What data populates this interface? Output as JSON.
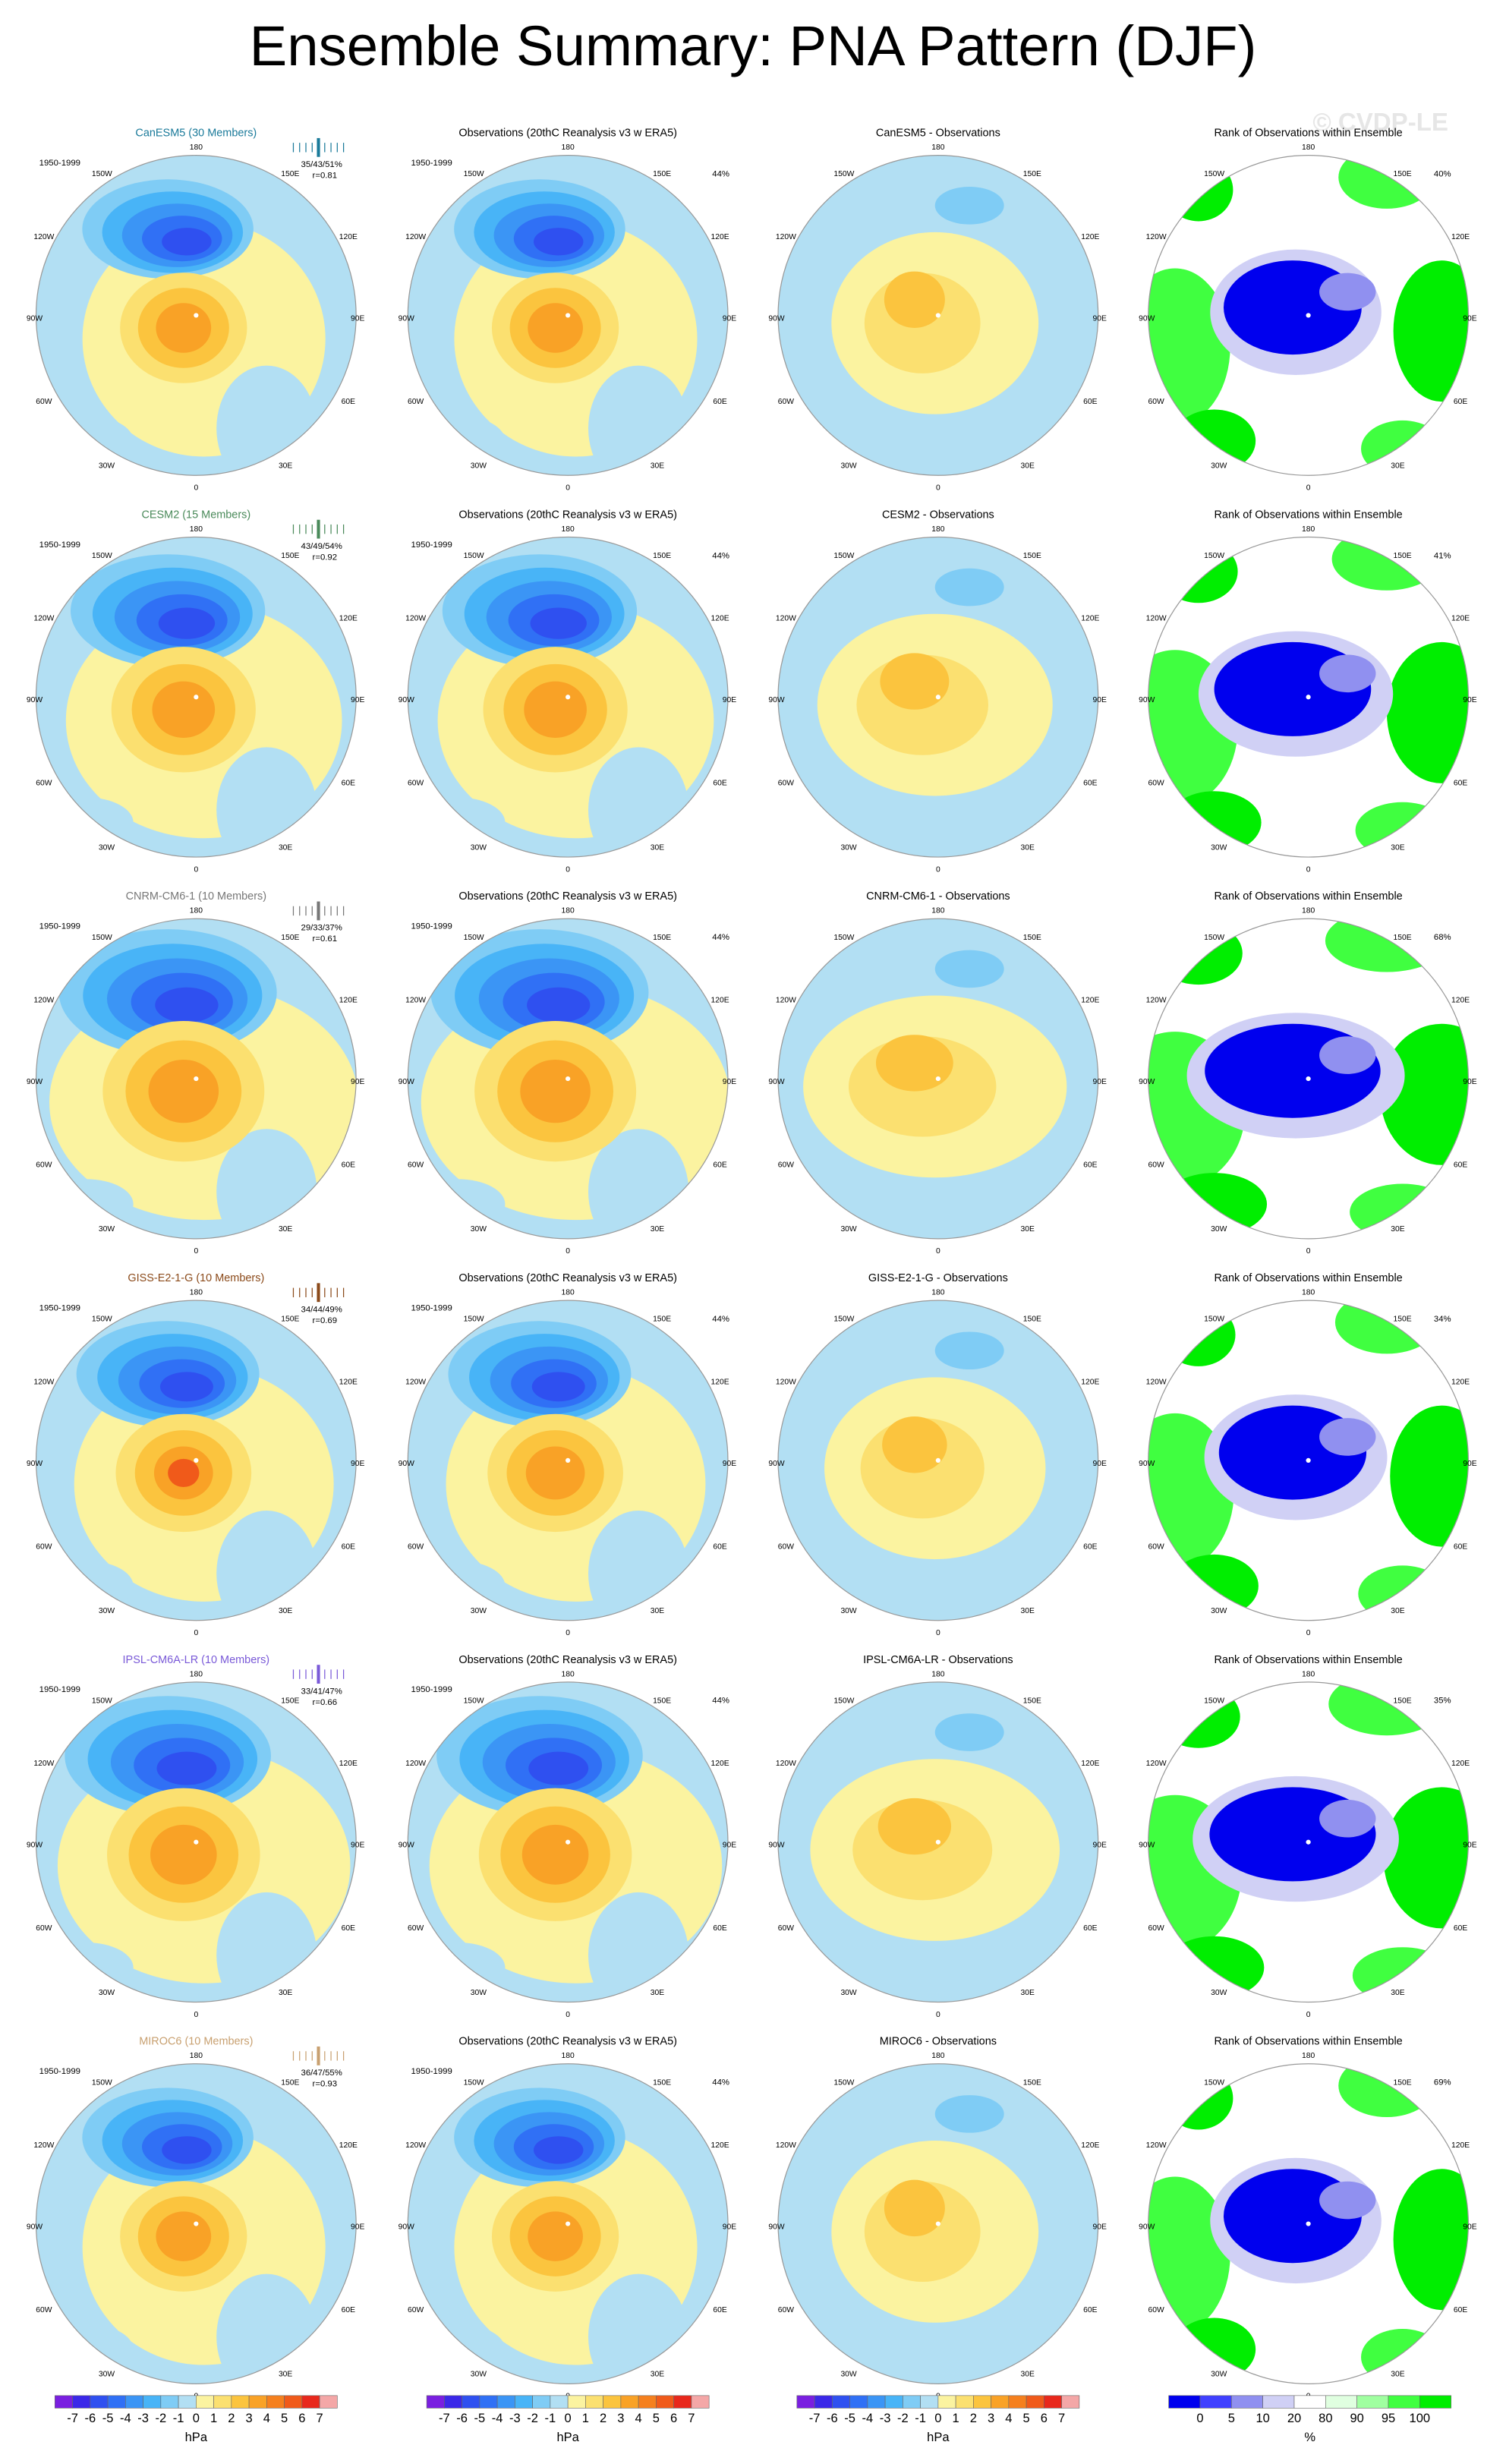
{
  "title": "Ensemble Summary: PNA Pattern (DJF)",
  "watermark": "© CVDP-LE",
  "longitude_labels": [
    "180",
    "150E",
    "120E",
    "90E",
    "60E",
    "30E",
    "0",
    "30W",
    "60W",
    "90W",
    "120W",
    "150W"
  ],
  "rows": [
    {
      "model_title": "CanESM5 (30 Members)",
      "model_color": "#1a7a9a",
      "period": "1950-1999",
      "stats": "35/43/51%",
      "correlation": "r=0.81",
      "obs_title": "Observations (20thC Reanalysis v3 w ERA5)",
      "obs_period": "1950-1999",
      "obs_pct": "44%",
      "diff_title": "CanESM5 - Observations",
      "rank_title": "Rank of Observations within Ensemble",
      "rank_pct": "40%"
    },
    {
      "model_title": "CESM2 (15 Members)",
      "model_color": "#4a8a5a",
      "period": "1950-1999",
      "stats": "43/49/54%",
      "correlation": "r=0.92",
      "obs_title": "Observations (20thC Reanalysis v3 w ERA5)",
      "obs_period": "1950-1999",
      "obs_pct": "44%",
      "diff_title": "CESM2 - Observations",
      "rank_title": "Rank of Observations within Ensemble",
      "rank_pct": "41%"
    },
    {
      "model_title": "CNRM-CM6-1 (10 Members)",
      "model_color": "#777777",
      "period": "1950-1999",
      "stats": "29/33/37%",
      "correlation": "r=0.61",
      "obs_title": "Observations (20thC Reanalysis v3 w ERA5)",
      "obs_period": "1950-1999",
      "obs_pct": "44%",
      "diff_title": "CNRM-CM6-1 - Observations",
      "rank_title": "Rank of Observations within Ensemble",
      "rank_pct": "68%"
    },
    {
      "model_title": "GISS-E2-1-G (10 Members)",
      "model_color": "#8b4a1a",
      "period": "1950-1999",
      "stats": "34/44/49%",
      "correlation": "r=0.69",
      "obs_title": "Observations (20thC Reanalysis v3 w ERA5)",
      "obs_period": "1950-1999",
      "obs_pct": "44%",
      "diff_title": "GISS-E2-1-G - Observations",
      "rank_title": "Rank of Observations within Ensemble",
      "rank_pct": "34%"
    },
    {
      "model_title": "IPSL-CM6A-LR (10 Members)",
      "model_color": "#7a5ad8",
      "period": "1950-1999",
      "stats": "33/41/47%",
      "correlation": "r=0.66",
      "obs_title": "Observations (20thC Reanalysis v3 w ERA5)",
      "obs_period": "1950-1999",
      "obs_pct": "44%",
      "diff_title": "IPSL-CM6A-LR - Observations",
      "rank_title": "Rank of Observations within Ensemble",
      "rank_pct": "35%"
    },
    {
      "model_title": "MIROC6 (10 Members)",
      "model_color": "#c8a070",
      "period": "1950-1999",
      "stats": "36/47/55%",
      "correlation": "r=0.93",
      "obs_title": "Observations (20thC Reanalysis v3 w ERA5)",
      "obs_period": "1950-1999",
      "obs_pct": "44%",
      "diff_title": "MIROC6 - Observations",
      "rank_title": "Rank of Observations within Ensemble",
      "rank_pct": "69%"
    }
  ],
  "colorbars": {
    "hpa_labels": [
      -7,
      -6,
      -5,
      -4,
      -3,
      -2,
      -1,
      0,
      1,
      2,
      3,
      4,
      5,
      6,
      7
    ],
    "hpa_colors": [
      "#7a1fe0",
      "#3b28e8",
      "#2f50f0",
      "#3070f5",
      "#3b95f5",
      "#48b4f7",
      "#7fccf5",
      "#b2dff3",
      "#fbf3a0",
      "#fbe070",
      "#fbc43e",
      "#f9a226",
      "#f5801e",
      "#f05a1a",
      "#e8281c",
      "#f4a7a7"
    ],
    "hpa_unit": "hPa",
    "rank_labels": [
      0,
      5,
      10,
      20,
      80,
      90,
      95,
      100
    ],
    "rank_colors": [
      "#0000ee",
      "#4040ff",
      "#9090f0",
      "#d0d0f5",
      "#ffffff",
      "#e0ffe0",
      "#a0ffa0",
      "#40ff40",
      "#00ee00"
    ],
    "rank_unit": "%"
  }
}
